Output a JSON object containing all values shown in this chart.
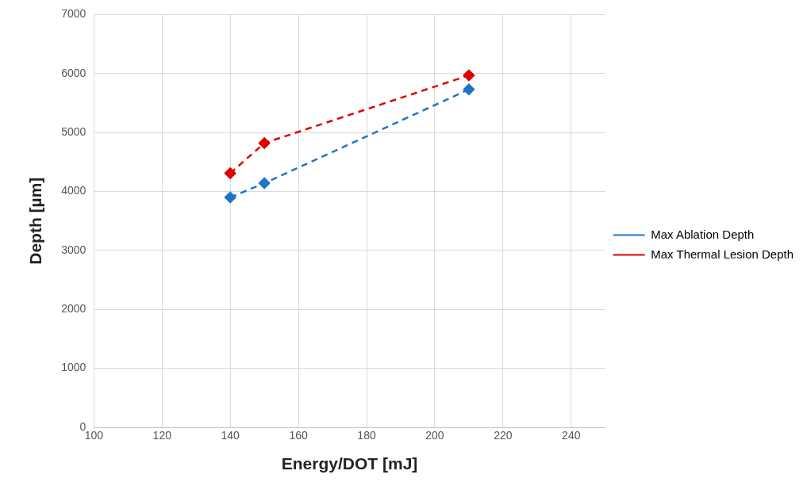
{
  "chart_data": {
    "type": "line",
    "xlabel": "Energy/DOT [mJ]",
    "ylabel": "Depth [µm]",
    "x": [
      140,
      150,
      210
    ],
    "series": [
      {
        "name": "Max Ablation Depth",
        "color": "#1f74c8",
        "values": [
          3900,
          4140,
          5730
        ]
      },
      {
        "name": "Max Thermal Lesion Depth",
        "color": "#e00000",
        "values": [
          4310,
          4820,
          5970
        ]
      }
    ],
    "xlim": [
      100,
      250
    ],
    "xticks": [
      100,
      120,
      140,
      160,
      180,
      200,
      220,
      240
    ],
    "ylim": [
      0,
      7000
    ],
    "yticks": [
      0,
      1000,
      2000,
      3000,
      4000,
      5000,
      6000,
      7000
    ],
    "grid": true,
    "legend": "right",
    "marker": "diamond",
    "line_style": "dashed"
  }
}
